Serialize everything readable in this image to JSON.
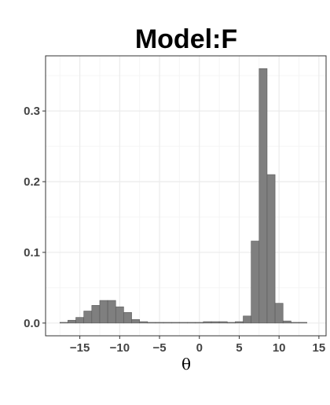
{
  "chart_data": {
    "type": "bar",
    "title": "Model:F",
    "xlabel": "θ",
    "ylabel": "",
    "bin_width": 1,
    "bins": [
      {
        "x0": -17.5,
        "x1": -16.5,
        "value": 0.001
      },
      {
        "x0": -16.5,
        "x1": -15.5,
        "value": 0.004
      },
      {
        "x0": -15.5,
        "x1": -14.5,
        "value": 0.008
      },
      {
        "x0": -14.5,
        "x1": -13.5,
        "value": 0.017
      },
      {
        "x0": -13.5,
        "x1": -12.5,
        "value": 0.025
      },
      {
        "x0": -12.5,
        "x1": -11.5,
        "value": 0.032
      },
      {
        "x0": -11.5,
        "x1": -10.5,
        "value": 0.032
      },
      {
        "x0": -10.5,
        "x1": -9.5,
        "value": 0.023
      },
      {
        "x0": -9.5,
        "x1": -8.5,
        "value": 0.015
      },
      {
        "x0": -8.5,
        "x1": -7.5,
        "value": 0.005
      },
      {
        "x0": -7.5,
        "x1": -6.5,
        "value": 0.002
      },
      {
        "x0": -6.5,
        "x1": -5.5,
        "value": 0.001
      },
      {
        "x0": -5.5,
        "x1": -4.5,
        "value": 0.001
      },
      {
        "x0": -4.5,
        "x1": -3.5,
        "value": 0.001
      },
      {
        "x0": -3.5,
        "x1": -2.5,
        "value": 0.001
      },
      {
        "x0": -2.5,
        "x1": -1.5,
        "value": 0.001
      },
      {
        "x0": -1.5,
        "x1": -0.5,
        "value": 0.001
      },
      {
        "x0": -0.5,
        "x1": 0.5,
        "value": 0.001
      },
      {
        "x0": 0.5,
        "x1": 1.5,
        "value": 0.002
      },
      {
        "x0": 1.5,
        "x1": 2.5,
        "value": 0.002
      },
      {
        "x0": 2.5,
        "x1": 3.5,
        "value": 0.002
      },
      {
        "x0": 3.5,
        "x1": 4.5,
        "value": 0.001
      },
      {
        "x0": 4.5,
        "x1": 5.5,
        "value": 0.002
      },
      {
        "x0": 5.5,
        "x1": 6.5,
        "value": 0.01
      },
      {
        "x0": 6.5,
        "x1": 7.5,
        "value": 0.116
      },
      {
        "x0": 7.5,
        "x1": 8.5,
        "value": 0.36
      },
      {
        "x0": 8.5,
        "x1": 9.5,
        "value": 0.21
      },
      {
        "x0": 9.5,
        "x1": 10.5,
        "value": 0.028
      },
      {
        "x0": 10.5,
        "x1": 11.5,
        "value": 0.003
      },
      {
        "x0": 11.5,
        "x1": 12.5,
        "value": 0.001
      },
      {
        "x0": 12.5,
        "x1": 13.5,
        "value": 0.001
      }
    ],
    "xlim": [
      -19.3,
      15.9
    ],
    "ylim": [
      -0.018,
      0.378
    ],
    "xticks": [
      -15,
      -10,
      -5,
      0,
      5,
      10,
      15
    ],
    "xtick_labels": [
      "−15",
      "−10",
      "−5",
      "0",
      "5",
      "10",
      "15"
    ],
    "yticks": [
      0.0,
      0.1,
      0.2,
      0.3
    ],
    "ytick_labels": [
      "0.0",
      "0.1",
      "0.2",
      "0.3"
    ],
    "grid": true,
    "legend": "none",
    "colors": {
      "bar_fill": "#7f7f7f",
      "bar_stroke": "#595959",
      "grid_major": "#ebebeb",
      "grid_minor": "#f5f5f5",
      "panel_border": "#333333",
      "tick_label": "#444444"
    }
  }
}
